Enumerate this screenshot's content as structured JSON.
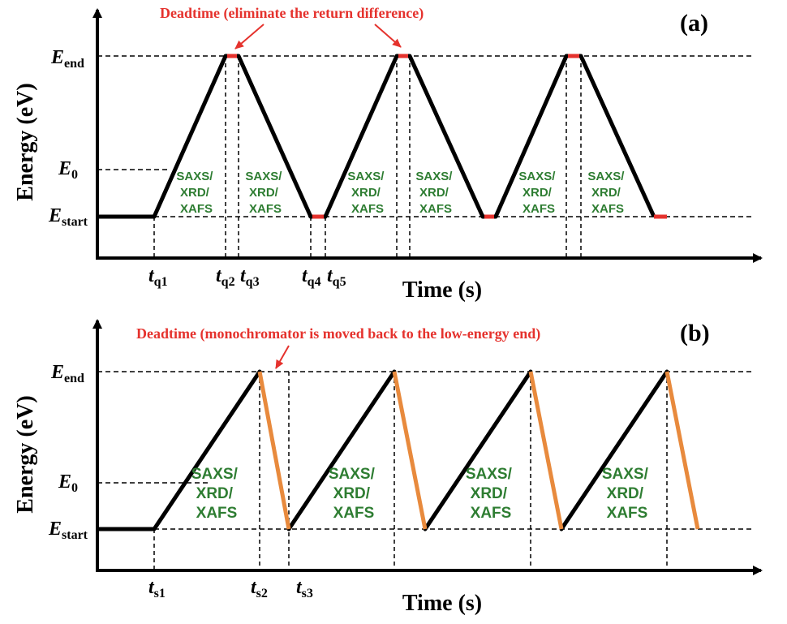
{
  "colors": {
    "axis": "#000000",
    "ramp_up": "#000000",
    "ramp_down_b": "#e88a3d",
    "deadtime": "#e5322d",
    "label_green": "#2e7d32",
    "annotation": "#e5322d"
  },
  "panel_a": {
    "letter": "(a)",
    "y_axis_title": "Energy (eV)",
    "x_axis_title": "Time  (s)",
    "deadtime_note": "Deadtime (eliminate the return difference)",
    "energy_levels": [
      {
        "base": "E",
        "sub": "end"
      },
      {
        "base": "E",
        "sub": "0"
      },
      {
        "base": "E",
        "sub": "start"
      }
    ],
    "time_marks": [
      {
        "base": "t",
        "sub": "q1"
      },
      {
        "base": "t",
        "sub": "q2"
      },
      {
        "base": "t",
        "sub": "q3"
      },
      {
        "base": "t",
        "sub": "q4"
      },
      {
        "base": "t",
        "sub": "q5"
      }
    ],
    "segment_labels": [
      [
        "SAXS/",
        "XRD/",
        "XAFS"
      ],
      [
        "SAXS/",
        "XRD/",
        "XAFS"
      ],
      [
        "SAXS/",
        "XRD/",
        "XAFS"
      ],
      [
        "SAXS/",
        "XRD/",
        "XAFS"
      ],
      [
        "SAXS/",
        "XRD/",
        "XAFS"
      ],
      [
        "SAXS/",
        "XRD/",
        "XAFS"
      ]
    ]
  },
  "panel_b": {
    "letter": "(b)",
    "y_axis_title": "Energy (eV)",
    "x_axis_title": "Time  (s)",
    "deadtime_note": "Deadtime (monochromator is moved back to the low-energy end)",
    "energy_levels": [
      {
        "base": "E",
        "sub": "end"
      },
      {
        "base": "E",
        "sub": "0"
      },
      {
        "base": "E",
        "sub": "start"
      }
    ],
    "time_marks": [
      {
        "base": "t",
        "sub": "s1"
      },
      {
        "base": "t",
        "sub": "s2"
      },
      {
        "base": "t",
        "sub": "s3"
      }
    ],
    "segment_labels": [
      [
        "SAXS/",
        "XRD/",
        "XAFS"
      ],
      [
        "SAXS/",
        "XRD/",
        "XAFS"
      ],
      [
        "SAXS/",
        "XRD/",
        "XAFS"
      ],
      [
        "SAXS/",
        "XRD/",
        "XAFS"
      ]
    ]
  }
}
